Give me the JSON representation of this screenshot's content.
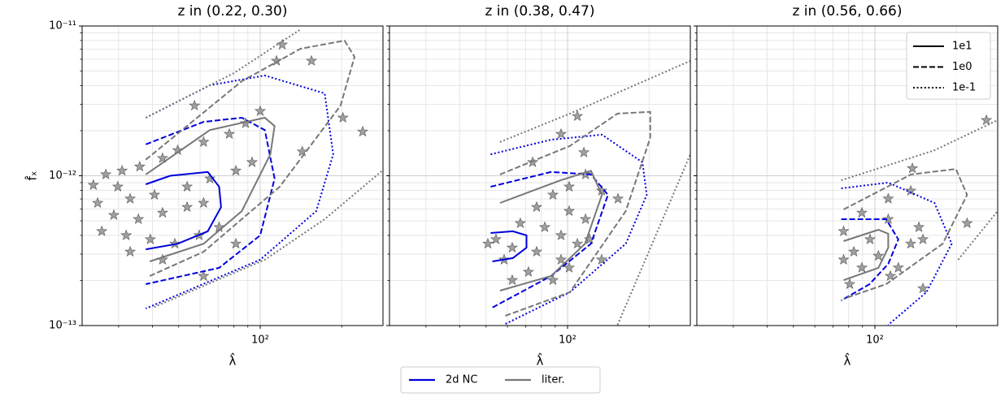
{
  "chart_data": [
    {
      "type": "contour",
      "title": "z in (0.22, 0.30)",
      "xlabel": "λ̂",
      "ylabel": "f̂ₓ",
      "xscale": "log",
      "yscale": "log",
      "xlim": [
        22,
        284
      ],
      "ylim": [
        1e-13,
        1e-11
      ],
      "xticks": [
        {
          "value": 100,
          "label": "10²"
        }
      ],
      "xminorticks": [
        30,
        40,
        50,
        60,
        70,
        80,
        90,
        200
      ],
      "yticks": [
        {
          "value": 1e-13,
          "label": "10⁻¹³"
        },
        {
          "value": 1e-12,
          "label": "10⁻¹²"
        },
        {
          "value": 1e-11,
          "label": "10⁻¹¹"
        }
      ],
      "yminorticks": [
        2e-13,
        3e-13,
        4e-13,
        5e-13,
        6e-13,
        7e-13,
        8e-13,
        9e-13,
        2e-12,
        3e-12,
        4e-12,
        5e-12,
        6e-12,
        7e-12,
        8e-12,
        9e-12
      ],
      "grid": true,
      "series": [
        {
          "color": "#0000dd",
          "linestyle": "solid",
          "x": [
            37.8,
            46.5,
            64,
            70.5,
            71.7,
            64,
            49.6,
            37.8
          ],
          "values": [
            8.77e-13,
            1e-12,
            1.06e-12,
            8.45e-13,
            6.18e-13,
            4.26e-13,
            3.52e-13,
            3.23e-13
          ]
        },
        {
          "color": "#0000dd",
          "linestyle": "dashed",
          "x": [
            37.8,
            61.8,
            85.5,
            104,
            113,
            100,
            70.5,
            37.8
          ],
          "values": [
            1.62e-12,
            2.29e-12,
            2.44e-12,
            2.02e-12,
            9.57e-13,
            4e-13,
            2.43e-13,
            1.89e-13
          ]
        },
        {
          "color": "#0000dd",
          "linestyle": "dotted",
          "x": [
            37.8,
            65.2,
            104,
            173,
            186,
            161,
            100,
            37.8
          ],
          "values": [
            2.44e-12,
            4.02e-12,
            4.67e-12,
            3.55e-12,
            1.39e-12,
            5.81e-13,
            2.75e-13,
            1.3e-13
          ]
        },
        {
          "color": "#777777",
          "linestyle": "solid",
          "x": [
            37.8,
            65.2,
            104,
            113,
            109,
            85.5,
            61.8,
            39.1
          ],
          "values": [
            1.02e-12,
            2.02e-12,
            2.44e-12,
            2.15e-12,
            1.39e-12,
            5.81e-13,
            3.52e-13,
            2.68e-13
          ]
        },
        {
          "color": "#777777",
          "linestyle": "dashed",
          "x": [
            37.8,
            85.5,
            141,
            205,
            223,
            198,
            118,
            61.8,
            39.1
          ],
          "values": [
            1.28e-12,
            4.28e-12,
            7.05e-12,
            7.99e-12,
            6.22e-12,
            2.94e-12,
            8.45e-13,
            3.11e-13,
            2.14e-13
          ]
        },
        {
          "color": "#777777",
          "linestyle": "dotted",
          "x": [
            37.8,
            80,
            141,
            null,
            40.6,
            104,
            173,
            282
          ],
          "values": [
            2.44e-12,
            4.85e-12,
            9.5e-12,
            null,
            1.33e-13,
            2.75e-13,
            5.13e-13,
            1.08e-12
          ]
        }
      ],
      "scatter": {
        "marker": "star",
        "color": "#808080",
        "x": [
          120.6,
          154.7,
          114.9,
          57.2,
          100,
          88.3,
          143,
          239,
          202,
          76.9,
          61.8,
          49.6,
          43.6,
          35.9,
          30.9,
          26.9,
          24.2,
          29.8,
          33.1,
          40.7,
          53.7,
          65.2,
          81.3,
          93.3,
          25.1,
          28.8,
          35.5,
          43.6,
          53.7,
          61.8,
          26.0,
          32.0,
          39.3,
          48.4,
          59.5,
          70.5,
          33.1,
          43.6,
          61.8,
          81.3
        ],
        "values": [
          7.5e-12,
          5.85e-12,
          5.85e-12,
          2.94e-12,
          2.7e-12,
          2.24e-12,
          1.45e-12,
          1.97e-12,
          2.44e-12,
          1.9e-12,
          1.68e-12,
          1.48e-12,
          1.31e-12,
          1.15e-12,
          1.08e-12,
          1.02e-12,
          8.67e-13,
          8.45e-13,
          7.02e-13,
          7.46e-13,
          8.45e-13,
          9.57e-13,
          1.08e-12,
          1.23e-12,
          6.58e-13,
          5.46e-13,
          5.13e-13,
          5.66e-13,
          6.18e-13,
          6.58e-13,
          4.26e-13,
          4e-13,
          3.76e-13,
          3.52e-13,
          4e-13,
          4.53e-13,
          3.11e-13,
          2.75e-13,
          2.14e-13,
          3.52e-13
        ]
      }
    },
    {
      "type": "contour",
      "title": "z in (0.38, 0.47)",
      "xlabel": "λ̂",
      "xscale": "log",
      "yscale": "log",
      "xlim": [
        22,
        284
      ],
      "ylim": [
        1e-13,
        1e-11
      ],
      "xticks": [
        {
          "value": 100,
          "label": "10²"
        }
      ],
      "xminorticks": [
        30,
        40,
        50,
        60,
        70,
        80,
        90,
        200
      ],
      "yticks": [
        1e-13,
        1e-12,
        1e-11
      ],
      "ytick_labels": false,
      "yminorticks": [
        2e-13,
        3e-13,
        4e-13,
        5e-13,
        6e-13,
        7e-13,
        8e-13,
        9e-13,
        2e-12,
        3e-12,
        4e-12,
        5e-12,
        6e-12,
        7e-12,
        8e-12,
        9e-12
      ],
      "grid": true,
      "series": [
        {
          "color": "#0000dd",
          "linestyle": "solid",
          "x": [
            52,
            62.8,
            70.5,
            70.5,
            62.8,
            52.8
          ],
          "values": [
            4.15e-13,
            4.26e-13,
            4e-13,
            3.31e-13,
            2.82e-13,
            2.68e-13
          ]
        },
        {
          "color": "#0000dd",
          "linestyle": "dashed",
          "x": [
            52,
            86.9,
            122,
            141,
            122,
            86.9,
            52
          ],
          "values": [
            8.45e-13,
            1.06e-12,
            1.02e-12,
            7.46e-13,
            3.52e-13,
            2.14e-13,
            1.3e-13
          ]
        },
        {
          "color": "#0000dd",
          "linestyle": "dotted",
          "x": [
            52,
            86.9,
            134,
            189,
            196,
            164,
            102,
            58
          ],
          "values": [
            1.39e-12,
            1.74e-12,
            1.88e-12,
            1.23e-12,
            7.46e-13,
            3.52e-13,
            1.67e-13,
            1.01e-13
          ]
        },
        {
          "color": "#777777",
          "linestyle": "solid",
          "x": [
            56.3,
            94.2,
            122,
            134,
            116,
            86.9,
            56.3
          ],
          "values": [
            6.58e-13,
            9.33e-13,
            1.08e-12,
            7.46e-13,
            3.52e-13,
            2.14e-13,
            1.71e-13
          ]
        },
        {
          "color": "#777777",
          "linestyle": "dashed",
          "x": [
            56.3,
            102,
            153,
            202,
            202,
            164,
            102,
            58
          ],
          "values": [
            1.02e-12,
            1.58e-12,
            2.6e-12,
            2.67e-12,
            1.79e-12,
            5.81e-13,
            1.67e-13,
            1.15e-13
          ]
        },
        {
          "color": "#777777",
          "linestyle": "dotted",
          "x": [
            56.3,
            102,
            284,
            null,
            153,
            284
          ],
          "values": [
            1.68e-12,
            2.6e-12,
            5.85e-12,
            null,
            1.01e-13,
            1.39e-12
          ]
        }
      ],
      "scatter": {
        "marker": "star",
        "color": "#808080",
        "x": [
          108.7,
          94.6,
          114.9,
          74.3,
          116.5,
          101.4,
          133.7,
          88.3,
          153.6,
          76.9,
          101.4,
          116.5,
          66.9,
          82.4,
          94.6,
          120.6,
          54.4,
          62.5,
          76.9,
          94.6,
          58.3,
          71.7,
          88.3,
          62.5,
          101.4,
          133.7,
          50.8,
          108.7
        ],
        "values": [
          2.5e-12,
          1.9e-12,
          1.43e-12,
          1.23e-12,
          1.02e-12,
          8.45e-13,
          7.94e-13,
          7.46e-13,
          7.02e-13,
          6.18e-13,
          5.81e-13,
          5.13e-13,
          4.82e-13,
          4.53e-13,
          4e-13,
          3.76e-13,
          3.76e-13,
          3.31e-13,
          3.11e-13,
          2.75e-13,
          2.75e-13,
          2.28e-13,
          2.01e-13,
          2.01e-13,
          2.43e-13,
          2.75e-13,
          3.52e-13,
          3.52e-13
        ]
      }
    },
    {
      "type": "contour",
      "title": "z in (0.56, 0.66)",
      "xlabel": "λ̂",
      "xscale": "log",
      "yscale": "log",
      "xlim": [
        22,
        284
      ],
      "ylim": [
        1e-13,
        1e-11
      ],
      "xticks": [
        {
          "value": 100,
          "label": "10²"
        }
      ],
      "xminorticks": [
        30,
        40,
        50,
        60,
        70,
        80,
        90,
        200
      ],
      "yticks": [
        1e-13,
        1e-12,
        1e-11
      ],
      "ytick_labels": false,
      "yminorticks": [
        2e-13,
        3e-13,
        4e-13,
        5e-13,
        6e-13,
        7e-13,
        8e-13,
        9e-13,
        2e-12,
        3e-12,
        4e-12,
        5e-12,
        6e-12,
        7e-12,
        8e-12,
        9e-12
      ],
      "grid": true,
      "legend": {
        "loc": "upper right",
        "entries": [
          {
            "label": "1e1",
            "linestyle": "solid"
          },
          {
            "label": "1e0",
            "linestyle": "dashed"
          },
          {
            "label": "1e-1",
            "linestyle": "dotted"
          }
        ]
      },
      "series": [
        {
          "color": "#0000dd",
          "linestyle": "dashed",
          "x": [
            75.1,
            110,
            122,
            112,
            95.5,
            75.1
          ],
          "values": [
            5.13e-13,
            5.13e-13,
            3.76e-13,
            2.58e-13,
            1.89e-13,
            1.47e-13
          ]
        },
        {
          "color": "#0000dd",
          "linestyle": "dotted",
          "x": [
            75.1,
            112,
            166,
            192,
            155,
            112
          ],
          "values": [
            8.24e-13,
            9e-13,
            6.58e-13,
            3.52e-13,
            1.67e-13,
            1.01e-13
          ]
        },
        {
          "color": "#777777",
          "linestyle": "solid",
          "x": [
            76.6,
            103,
            112,
            112,
            103,
            76.6
          ],
          "values": [
            3.66e-13,
            4.36e-13,
            4.1e-13,
            3.31e-13,
            2.43e-13,
            2.01e-13
          ]
        },
        {
          "color": "#777777",
          "linestyle": "dashed",
          "x": [
            76.6,
            136,
            199,
            219,
            178,
            110,
            76.6
          ],
          "values": [
            5.96e-13,
            1.02e-12,
            1.11e-12,
            7.46e-13,
            3.52e-13,
            1.89e-13,
            1.51e-13
          ]
        },
        {
          "color": "#777777",
          "linestyle": "dotted",
          "x": [
            75.1,
            166,
            284,
            null,
            203,
            284
          ],
          "values": [
            9.33e-13,
            1.48e-12,
            2.35e-12,
            null,
            2.75e-13,
            5.81e-13
          ]
        }
      ],
      "scatter": {
        "marker": "star",
        "color": "#808080",
        "x": [
          258,
          137.5,
          135.6,
          112,
          89.5,
          112,
          145.3,
          76.6,
          95.9,
          135.6,
          150.4,
          83.6,
          103,
          76.6,
          89.5,
          122,
          150.4,
          219,
          80.7,
          114
        ],
        "values": [
          2.35e-12,
          1.12e-12,
          7.94e-13,
          7.02e-13,
          5.66e-13,
          5.13e-13,
          4.53e-13,
          4.26e-13,
          3.76e-13,
          3.52e-13,
          3.76e-13,
          3.11e-13,
          2.92e-13,
          2.75e-13,
          2.43e-13,
          2.43e-13,
          1.77e-13,
          4.82e-13,
          1.89e-13,
          2.14e-13
        ]
      }
    }
  ],
  "legend": {
    "loc": "lower center",
    "entries": [
      {
        "label": "2d NC",
        "color": "#0000dd"
      },
      {
        "label": "liter.",
        "color": "#777777"
      }
    ]
  }
}
